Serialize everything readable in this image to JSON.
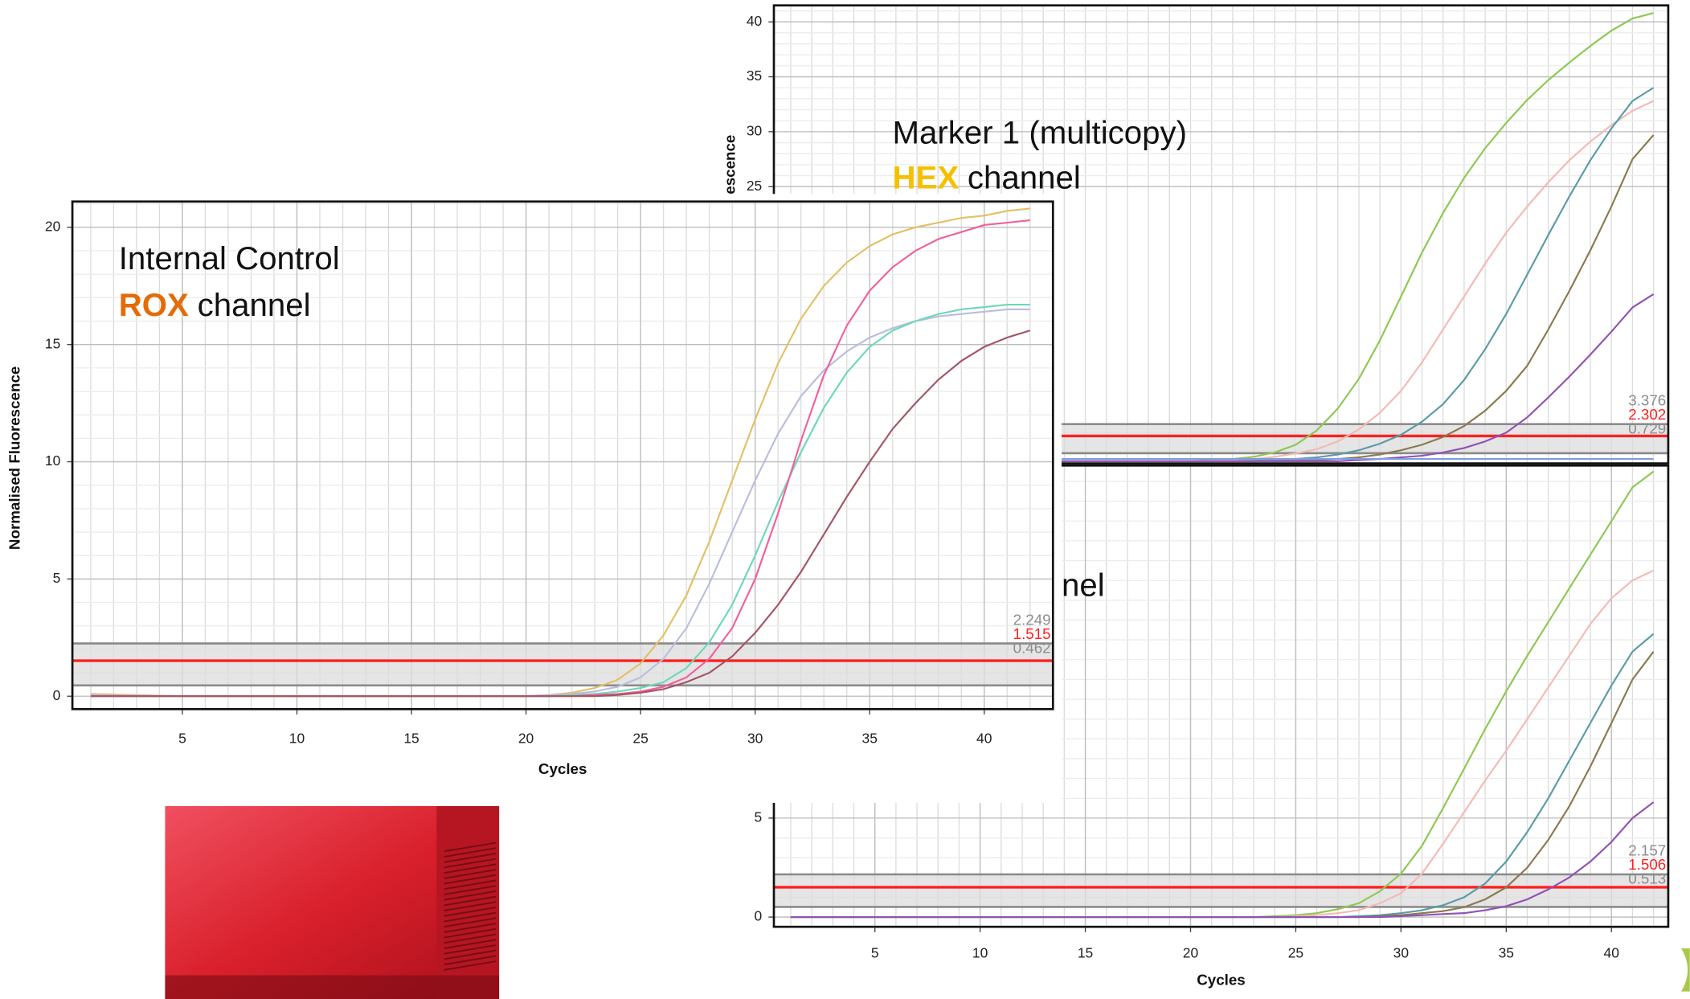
{
  "chart_data": [
    {
      "type": "line",
      "xlabel": "Cycles",
      "ylabel": "Normalised Fluorescence",
      "annotation": [
        [
          {
            "text": "Internal Control"
          }
        ],
        [
          {
            "text": "ROX",
            "color": "#e36c0a",
            "bold": true
          },
          {
            "text": "channel"
          }
        ]
      ],
      "x": [
        1,
        5,
        10,
        15,
        20,
        21,
        22,
        23,
        24,
        25,
        26,
        27,
        28,
        29,
        30,
        31,
        32,
        33,
        34,
        35,
        36,
        37,
        38,
        39,
        40,
        41,
        42
      ],
      "series": [
        {
          "color": "#e3c065",
          "values": [
            0.1,
            0,
            0,
            0,
            0,
            0.05,
            0.15,
            0.35,
            0.7,
            1.4,
            2.6,
            4.3,
            6.6,
            9.2,
            11.8,
            14.2,
            16.1,
            17.5,
            18.5,
            19.2,
            19.7,
            20.0,
            20.2,
            20.4,
            20.5,
            20.7,
            20.8
          ]
        },
        {
          "color": "#b9bde0",
          "values": [
            0.05,
            0,
            0,
            0,
            0,
            0.05,
            0.1,
            0.2,
            0.4,
            0.8,
            1.6,
            2.9,
            4.8,
            7.0,
            9.2,
            11.2,
            12.8,
            13.9,
            14.7,
            15.3,
            15.7,
            16.0,
            16.2,
            16.3,
            16.4,
            16.5,
            16.5
          ]
        },
        {
          "color": "#6dd8b9",
          "values": [
            0,
            0,
            0,
            0,
            0,
            0,
            0.05,
            0.1,
            0.2,
            0.35,
            0.6,
            1.2,
            2.3,
            3.9,
            6.0,
            8.3,
            10.4,
            12.3,
            13.8,
            14.9,
            15.6,
            16.0,
            16.3,
            16.5,
            16.6,
            16.7,
            16.7
          ]
        },
        {
          "color": "#f0609c",
          "values": [
            0,
            0,
            0,
            0,
            0,
            0,
            0,
            0.05,
            0.1,
            0.2,
            0.4,
            0.8,
            1.6,
            2.9,
            5.0,
            7.8,
            10.9,
            13.7,
            15.8,
            17.3,
            18.3,
            19.0,
            19.5,
            19.8,
            20.1,
            20.2,
            20.3
          ]
        },
        {
          "color": "#a35563",
          "values": [
            0,
            0,
            0,
            0,
            0,
            0,
            0,
            0,
            0.05,
            0.15,
            0.3,
            0.6,
            1.0,
            1.7,
            2.7,
            3.9,
            5.3,
            6.9,
            8.5,
            10.0,
            11.4,
            12.5,
            13.5,
            14.3,
            14.9,
            15.3,
            15.6
          ]
        }
      ],
      "xlim": [
        0.2,
        43.0
      ],
      "ylim": [
        -0.55,
        21.1
      ],
      "xticks": [
        5,
        10,
        15,
        20,
        25,
        30,
        35,
        40
      ],
      "yticks": [
        0,
        5,
        10,
        15,
        20
      ],
      "thresholds": [
        2.249,
        1.515,
        0.462
      ],
      "threshold_colors": [
        "#8c8c8c",
        "#ff2020",
        "#8c8c8c"
      ]
    },
    {
      "type": "line",
      "ylabel": "Normalised Fluorescence",
      "annotation": [
        [
          {
            "text": "Marker 1 (multicopy)"
          }
        ],
        [
          {
            "text": "HEX",
            "color": "#f5c000",
            "bold": true
          },
          {
            "text": "channel"
          }
        ]
      ],
      "x": [
        1,
        5,
        10,
        15,
        20,
        21,
        22,
        23,
        24,
        25,
        26,
        27,
        28,
        29,
        30,
        31,
        32,
        33,
        34,
        35,
        36,
        37,
        38,
        39,
        40,
        41,
        42
      ],
      "series": [
        {
          "color": "#8dc852",
          "values": [
            0.1,
            0,
            0,
            0,
            0,
            0.1,
            0.2,
            0.4,
            0.8,
            1.5,
            2.8,
            4.8,
            7.5,
            11.0,
            15.0,
            19.0,
            22.6,
            25.8,
            28.5,
            30.8,
            32.9,
            34.7,
            36.3,
            37.8,
            39.2,
            40.3,
            40.8
          ]
        },
        {
          "color": "#f4b9b6",
          "values": [
            0,
            0,
            0,
            0,
            0,
            0.05,
            0.1,
            0.2,
            0.4,
            0.7,
            1.1,
            1.8,
            2.9,
            4.4,
            6.4,
            9.0,
            12.0,
            15.0,
            18.0,
            20.8,
            23.2,
            25.4,
            27.4,
            29.1,
            30.6,
            31.9,
            32.8
          ]
        },
        {
          "color": "#5a9ba8",
          "values": [
            0,
            0,
            0,
            0,
            0,
            0,
            0,
            0.05,
            0.1,
            0.2,
            0.35,
            0.6,
            1.0,
            1.6,
            2.4,
            3.6,
            5.2,
            7.4,
            10.2,
            13.4,
            17.0,
            20.6,
            24.1,
            27.4,
            30.3,
            32.8,
            34.0
          ]
        },
        {
          "color": "#8b7a4f",
          "values": [
            0,
            0,
            0,
            0,
            0,
            0,
            0,
            0,
            0,
            0.05,
            0.1,
            0.2,
            0.35,
            0.6,
            1.0,
            1.5,
            2.2,
            3.2,
            4.6,
            6.4,
            8.7,
            12.0,
            15.5,
            19.2,
            23.2,
            27.5,
            29.7
          ]
        },
        {
          "color": "#9152b3",
          "values": [
            0,
            0,
            0,
            0,
            0,
            0,
            0,
            0,
            0,
            0,
            0,
            0,
            0.1,
            0.2,
            0.35,
            0.5,
            0.8,
            1.2,
            1.8,
            2.6,
            4.0,
            5.8,
            7.7,
            9.7,
            11.8,
            14.0,
            15.2
          ]
        },
        {
          "color": "#7f9ce0",
          "values": [
            0.2,
            0.2,
            0.2,
            0.2,
            0.2,
            0.2,
            0.2,
            0.2,
            0.2,
            0.2,
            0.2,
            0.2,
            0.2,
            0.2,
            0.2,
            0.2,
            0.2,
            0.2,
            0.2,
            0.2,
            0.2,
            0.2,
            0.2,
            0.2,
            0.2,
            0.2,
            0.2
          ]
        }
      ],
      "xlim": [
        0.2,
        42.7
      ],
      "ylim": [
        -0.2,
        41.5
      ],
      "yticks": [
        25,
        30,
        35,
        40
      ],
      "thresholds": [
        3.376,
        2.302,
        0.729
      ],
      "threshold_colors": [
        "#8c8c8c",
        "#ff2020",
        "#8c8c8c"
      ]
    },
    {
      "type": "line",
      "xlabel": "Cycles",
      "annotation": [
        [
          {
            "text": "nel"
          }
        ]
      ],
      "x": [
        1,
        5,
        10,
        15,
        20,
        21,
        22,
        23,
        24,
        25,
        26,
        27,
        28,
        29,
        30,
        31,
        32,
        33,
        34,
        35,
        36,
        37,
        38,
        39,
        40,
        41,
        42
      ],
      "series": [
        {
          "color": "#8dc852",
          "values": [
            0,
            0,
            0,
            0,
            0,
            0,
            0,
            0,
            0.05,
            0.1,
            0.2,
            0.4,
            0.7,
            1.3,
            2.2,
            3.6,
            5.5,
            7.5,
            9.5,
            11.4,
            13.2,
            14.9,
            16.6,
            18.3,
            20.0,
            21.7,
            22.5
          ]
        },
        {
          "color": "#f4b9b6",
          "values": [
            0,
            0,
            0,
            0,
            0,
            0,
            0,
            0,
            0,
            0.05,
            0.1,
            0.2,
            0.35,
            0.7,
            1.2,
            2.2,
            3.7,
            5.3,
            6.9,
            8.4,
            10.0,
            11.6,
            13.2,
            14.8,
            16.1,
            17.0,
            17.5
          ]
        },
        {
          "color": "#5a9ba8",
          "values": [
            0,
            0,
            0,
            0,
            0,
            0,
            0,
            0,
            0,
            0,
            0,
            0,
            0.05,
            0.1,
            0.2,
            0.35,
            0.6,
            1.0,
            1.7,
            2.8,
            4.3,
            6.0,
            7.9,
            9.8,
            11.7,
            13.4,
            14.3
          ]
        },
        {
          "color": "#8b7a4f",
          "values": [
            0,
            0,
            0,
            0,
            0,
            0,
            0,
            0,
            0,
            0,
            0,
            0,
            0,
            0.05,
            0.1,
            0.2,
            0.3,
            0.5,
            0.9,
            1.5,
            2.5,
            3.9,
            5.6,
            7.6,
            9.8,
            12.0,
            13.4
          ]
        },
        {
          "color": "#9152b3",
          "values": [
            0,
            0,
            0,
            0,
            0,
            0,
            0,
            0,
            0,
            0,
            0,
            0,
            0,
            0,
            0.05,
            0.1,
            0.15,
            0.2,
            0.35,
            0.55,
            0.9,
            1.4,
            2.0,
            2.8,
            3.8,
            5.0,
            5.8
          ]
        }
      ],
      "xlim": [
        0.2,
        42.7
      ],
      "ylim": [
        -0.49,
        22.8
      ],
      "xticks": [
        5,
        10,
        15,
        20,
        25,
        30,
        35,
        40
      ],
      "yticks": [
        0,
        5
      ],
      "thresholds": [
        2.157,
        1.506,
        0.513
      ],
      "threshold_colors": [
        "#8c8c8c",
        "#ff2020",
        "#8c8c8c"
      ]
    }
  ]
}
